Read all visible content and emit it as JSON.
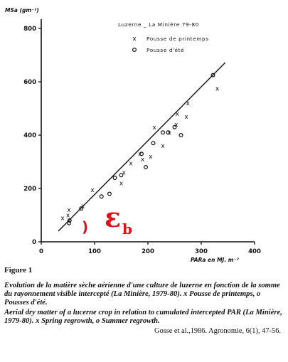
{
  "chart_data": {
    "type": "scatter",
    "title": "Luzerne _ La Minière  79-80",
    "ylabel": "MSa (gm⁻²)",
    "xlabel": "PARa  en  MJ. m⁻²",
    "xlim": [
      0,
      400
    ],
    "ylim": [
      0,
      800
    ],
    "xticks": [
      0,
      100,
      200,
      300,
      400
    ],
    "yticks": [
      0,
      200,
      400,
      600,
      800
    ],
    "xtick_labels": [
      "0",
      "100",
      "200",
      "300",
      "400"
    ],
    "ytick_labels": [
      "0",
      "200",
      "400",
      "600",
      "800"
    ],
    "grid": false,
    "legend_position": "top-right",
    "series": [
      {
        "name": "Pousse  de  printemps",
        "marker": "x",
        "x": [
          40,
          50,
          52,
          78,
          96,
          150,
          155,
          168,
          185,
          190,
          205,
          212,
          228,
          240,
          253,
          255,
          272,
          275,
          330
        ],
        "y": [
          90,
          100,
          120,
          135,
          195,
          220,
          260,
          295,
          330,
          310,
          320,
          430,
          360,
          410,
          440,
          480,
          470,
          520,
          575
        ]
      },
      {
        "name": "Pousse  d'été",
        "marker": "o",
        "x": [
          52,
          53,
          75,
          113,
          128,
          138,
          150,
          188,
          196,
          210,
          228,
          238,
          250,
          262,
          322
        ],
        "y": [
          70,
          80,
          125,
          170,
          180,
          240,
          250,
          330,
          280,
          370,
          410,
          410,
          430,
          400,
          625
        ]
      }
    ],
    "fit_line": {
      "x": [
        32,
        345
      ],
      "y": [
        40,
        672
      ]
    },
    "annotation": {
      "paren": ")",
      "symbol": "ε",
      "subscript": "b",
      "color": "#e0101b"
    }
  },
  "caption": {
    "figure_label": "Figure 1",
    "french": "Evolution de la matière sèche aérienne d'une culture de luzerne en fonction de la somme du rayonnement visible intercepté (La Minière, 1979-80). x Pousse de printemps, o Pousses d'été.",
    "english": "Aerial dry matter of a lucerne crop in relation to cumulated intercepted PAR (La Minière, 1979-80). x Spring regrowth, o Summer regrowth.",
    "source": "Gosse et al.,1986. Agronomie, 6(1), 47-56."
  }
}
